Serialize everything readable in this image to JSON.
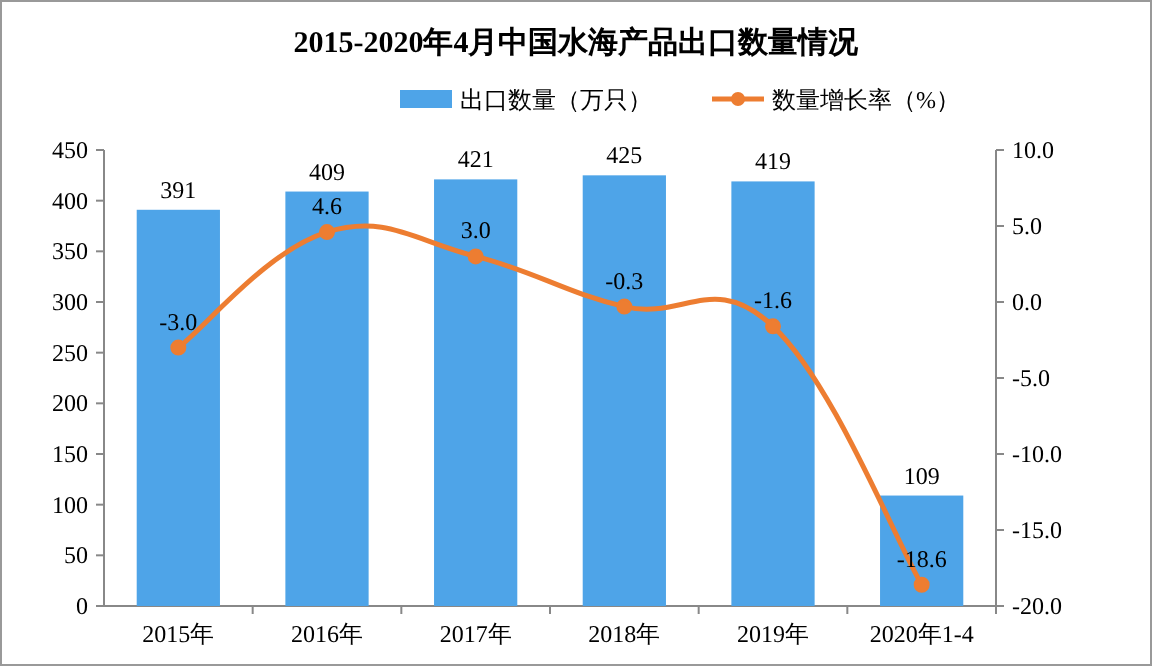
{
  "chart_data": {
    "type": "bar",
    "title": "2015-2020年4月中国水海产品出口数量情况",
    "categories": [
      "2015年",
      "2016年",
      "2017年",
      "2018年",
      "2019年",
      "2020年1-4"
    ],
    "series": [
      {
        "name": "出口数量（万只）",
        "color": "#4ea4e8",
        "values": [
          391,
          409,
          421,
          425,
          419,
          109
        ],
        "value_labels": [
          "391",
          "409",
          "421",
          "425",
          "419",
          "109"
        ]
      },
      {
        "name": "数量增长率（%）",
        "type": "line",
        "axis": "y2",
        "color": "#ed7d31",
        "marker": "circle",
        "values": [
          -3.0,
          4.6,
          3.0,
          -0.3,
          -1.6,
          -18.6
        ],
        "value_labels": [
          "-3.0",
          "4.6",
          "3.0",
          "-0.3",
          "-1.6",
          "-18.6"
        ]
      }
    ],
    "ylim": [
      0,
      450
    ],
    "yticks": [
      0,
      50,
      100,
      150,
      200,
      250,
      300,
      350,
      400,
      450
    ],
    "y2lim": [
      -20,
      10
    ],
    "y2ticks": [
      {
        "value": 10,
        "label": "10.0"
      },
      {
        "value": 5,
        "label": "5.0"
      },
      {
        "value": 0,
        "label": "0.0"
      },
      {
        "value": -5,
        "label": "-5.0"
      },
      {
        "value": -10,
        "label": "-10.0"
      },
      {
        "value": -15,
        "label": "-15.0"
      },
      {
        "value": -20,
        "label": "-20.0"
      }
    ],
    "legend": "top",
    "grid": false
  }
}
